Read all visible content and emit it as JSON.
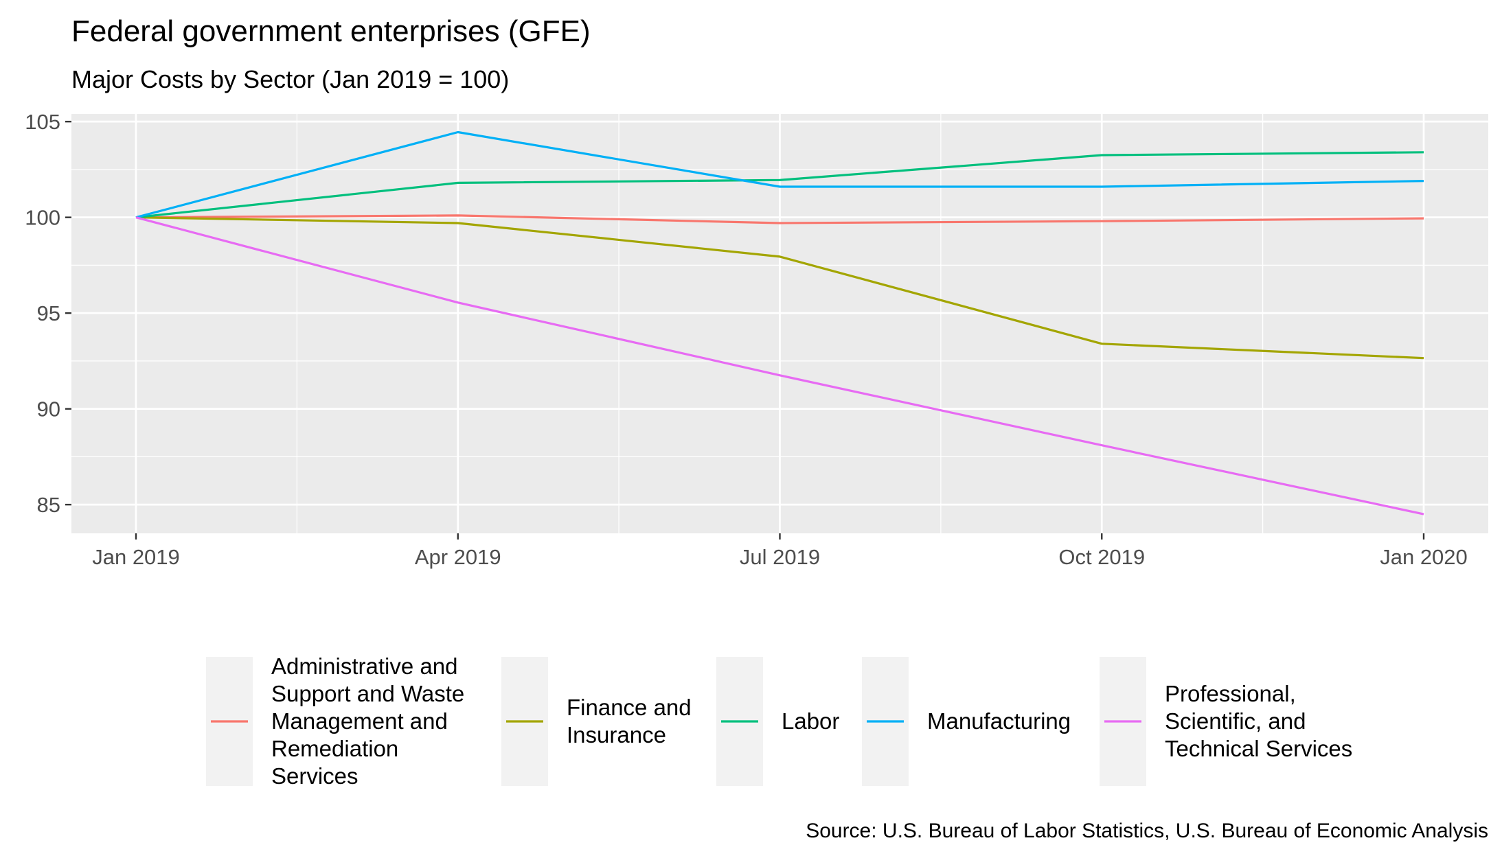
{
  "chart_data": {
    "type": "line",
    "title": "Federal government enterprises (GFE)",
    "subtitle": "Major Costs by Sector (Jan 2019 = 100)",
    "caption": "Source: U.S. Bureau of Labor Statistics, U.S. Bureau of Economic Analysis",
    "xlabel": "",
    "ylabel": "",
    "x": [
      "2019-01",
      "2019-04",
      "2019-07",
      "2019-10",
      "2020-01"
    ],
    "x_tick_labels": [
      "Jan 2019",
      "Apr 2019",
      "Jul 2019",
      "Oct 2019",
      "Jan 2020"
    ],
    "y_ticks": [
      85,
      90,
      95,
      100,
      105
    ],
    "ylim": [
      83.5,
      105.4
    ],
    "grid": true,
    "legend_position": "bottom",
    "series": [
      {
        "name": "Administrative and Support and Waste Management and Remediation Services",
        "legend_lines": [
          "Administrative and",
          "Support and Waste",
          "Management and",
          "Remediation",
          "Services"
        ],
        "color": "#F8766D",
        "values": [
          100,
          100.1,
          99.7,
          99.8,
          99.95
        ]
      },
      {
        "name": "Finance and Insurance",
        "legend_lines": [
          "Finance and",
          "Insurance"
        ],
        "color": "#A3A500",
        "values": [
          100,
          99.7,
          97.95,
          93.4,
          92.65
        ]
      },
      {
        "name": "Labor",
        "legend_lines": [
          "Labor"
        ],
        "color": "#00BF7D",
        "values": [
          100,
          101.8,
          101.95,
          103.25,
          103.4
        ]
      },
      {
        "name": "Manufacturing",
        "legend_lines": [
          "Manufacturing"
        ],
        "color": "#00B0F6",
        "values": [
          100,
          104.45,
          101.6,
          101.6,
          101.9
        ]
      },
      {
        "name": "Professional, Scientific, and Technical Services",
        "legend_lines": [
          "Professional,",
          "Scientific, and",
          "Technical Services"
        ],
        "color": "#E76BF3",
        "values": [
          100,
          95.55,
          91.75,
          88.1,
          84.5
        ]
      }
    ]
  }
}
